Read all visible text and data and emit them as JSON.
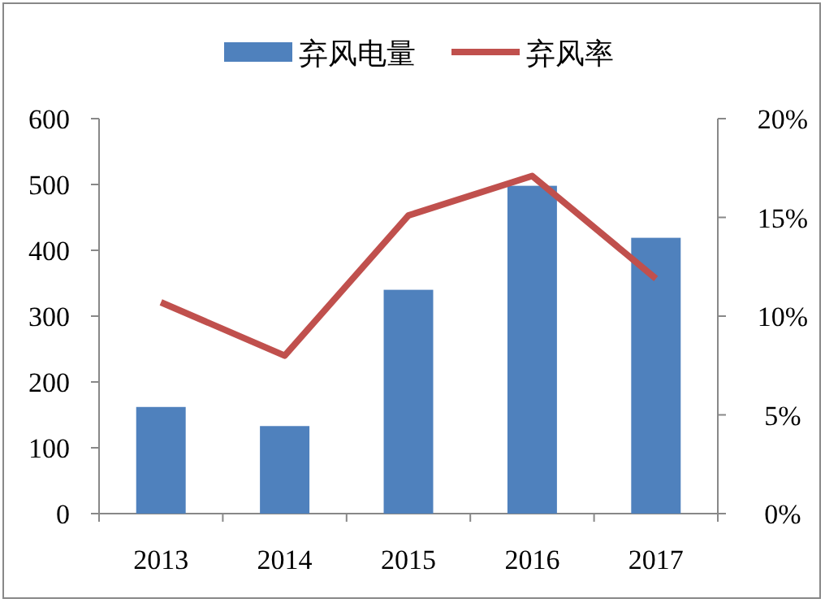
{
  "chart_data": {
    "type": "bar",
    "categories": [
      "2013",
      "2014",
      "2015",
      "2016",
      "2017"
    ],
    "series": [
      {
        "name": "弃风电量",
        "color": "#4f81bd",
        "values": [
          162,
          133,
          340,
          498,
          419
        ]
      },
      {
        "name": "弃风率",
        "type": "line",
        "axis": "y2",
        "color": "#c0504d",
        "values": [
          10.7,
          8.0,
          15.1,
          17.1,
          11.9
        ]
      }
    ],
    "ylim": [
      0,
      600
    ],
    "yticks": [
      0,
      100,
      200,
      300,
      400,
      500,
      600
    ],
    "y2lim": [
      0,
      20
    ],
    "y2ticks": [
      {
        "value": 0,
        "label": "0%"
      },
      {
        "value": 5,
        "label": "5%"
      },
      {
        "value": 10,
        "label": "10%"
      },
      {
        "value": 15,
        "label": "15%"
      },
      {
        "value": 20,
        "label": "20%"
      }
    ],
    "legend": "top",
    "grid": false,
    "marker": "none",
    "line_style": "solid"
  }
}
